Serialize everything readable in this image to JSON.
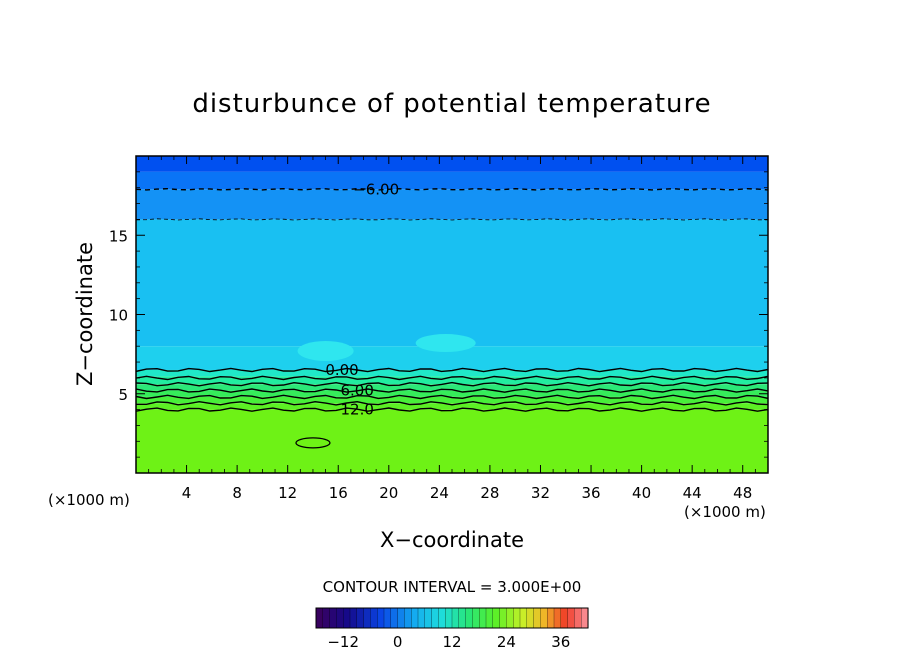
{
  "chart_data": {
    "type": "heatmap",
    "title": "disturbunce of potential temperature",
    "xlabel": "X−coordinate",
    "ylabel": "Z−coordinate",
    "x_unit_left": "(×1000 m)",
    "x_unit_right": "(×1000 m)",
    "xlim": [
      0,
      50
    ],
    "ylim": [
      0,
      20
    ],
    "x_ticks": [
      4,
      8,
      12,
      16,
      20,
      24,
      28,
      32,
      36,
      40,
      44,
      48
    ],
    "y_ticks": [
      5,
      10,
      15
    ],
    "contour_interval_text": "CONTOUR INTERVAL = 3.000E+00",
    "contour_labels": [
      "−6.00",
      "0.00",
      "6.00",
      "12.0"
    ],
    "colorbar": {
      "min": -18,
      "max": 42,
      "ticks": [
        "−12",
        "0",
        "12",
        "24",
        "36"
      ]
    },
    "value_bands": [
      {
        "z_top": 20.0,
        "z_bottom": 19.0,
        "value": -9,
        "color": "#0050f0"
      },
      {
        "z_top": 19.0,
        "z_bottom": 17.9,
        "value": -8,
        "color": "#0a74f6"
      },
      {
        "z_top": 17.9,
        "z_bottom": 16.0,
        "value": -6,
        "color": "#1492f5"
      },
      {
        "z_top": 16.0,
        "z_bottom": 8.0,
        "value": -3,
        "color": "#19c0f2"
      },
      {
        "z_top": 8.0,
        "z_bottom": 6.5,
        "value": -1,
        "color": "#1ed0ee"
      },
      {
        "z_top": 6.5,
        "z_bottom": 6.1,
        "value": 1,
        "color": "#20e8c8"
      },
      {
        "z_top": 6.1,
        "z_bottom": 5.6,
        "value": 3,
        "color": "#22eca0"
      },
      {
        "z_top": 5.6,
        "z_bottom": 5.2,
        "value": 5,
        "color": "#2ce878"
      },
      {
        "z_top": 5.2,
        "z_bottom": 4.8,
        "value": 7,
        "color": "#36ec5a"
      },
      {
        "z_top": 4.8,
        "z_bottom": 4.4,
        "value": 9,
        "color": "#48ee3a"
      },
      {
        "z_top": 4.4,
        "z_bottom": 4.0,
        "value": 11,
        "color": "#5cf024"
      },
      {
        "z_top": 4.0,
        "z_bottom": 0.0,
        "value": 13,
        "color": "#6ef216"
      }
    ],
    "contours": [
      {
        "label": "−6.00",
        "z": 17.9,
        "style": "dashed",
        "label_x": 19.0
      },
      {
        "label": "",
        "z": 16.0,
        "style": "dashed-thin"
      },
      {
        "label": "0.00",
        "z": 6.5,
        "style": "solid",
        "label_x": 16.3
      },
      {
        "label": "",
        "z": 6.0,
        "style": "solid"
      },
      {
        "label": "",
        "z": 5.6,
        "style": "solid"
      },
      {
        "label": "6.00",
        "z": 5.2,
        "style": "solid",
        "label_x": 17.5
      },
      {
        "label": "",
        "z": 4.8,
        "style": "solid"
      },
      {
        "label": "",
        "z": 4.4,
        "style": "solid"
      },
      {
        "label": "12.0",
        "z": 4.0,
        "style": "solid",
        "label_x": 17.5
      }
    ]
  }
}
